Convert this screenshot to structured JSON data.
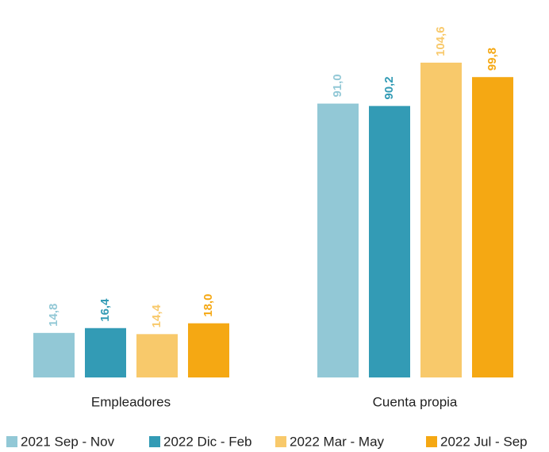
{
  "chart_data": {
    "type": "bar",
    "categories": [
      "Empleadores",
      "Cuenta propia"
    ],
    "series": [
      {
        "name": "2021 Sep - Nov",
        "color": "#92c8d6",
        "values": [
          14.8,
          91.0
        ],
        "value_labels": [
          "14,8",
          "91,0"
        ]
      },
      {
        "name": "2022 Dic - Feb",
        "color": "#339bb5",
        "values": [
          16.4,
          90.2
        ],
        "value_labels": [
          "16,4",
          "90,2"
        ]
      },
      {
        "name": "2022 Mar - May",
        "color": "#f8c96b",
        "values": [
          14.4,
          104.6
        ],
        "value_labels": [
          "14,4",
          "104,6"
        ]
      },
      {
        "name": "2022 Jul - Sep",
        "color": "#f5a813",
        "values": [
          18.0,
          99.8
        ],
        "value_labels": [
          "18,0",
          "99,8"
        ]
      }
    ]
  }
}
